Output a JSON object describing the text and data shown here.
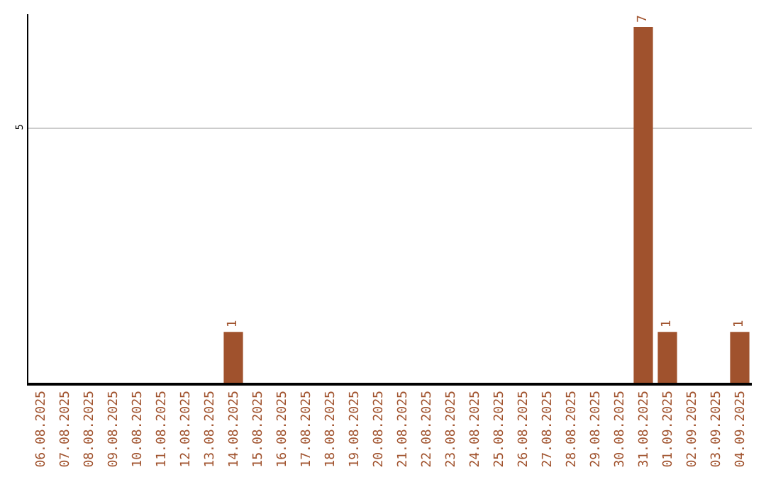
{
  "chart_data": {
    "type": "bar",
    "categories": [
      "06.08.2025",
      "07.08.2025",
      "08.08.2025",
      "09.08.2025",
      "10.08.2025",
      "11.08.2025",
      "12.08.2025",
      "13.08.2025",
      "14.08.2025",
      "15.08.2025",
      "16.08.2025",
      "17.08.2025",
      "18.08.2025",
      "19.08.2025",
      "20.08.2025",
      "21.08.2025",
      "22.08.2025",
      "23.08.2025",
      "24.08.2025",
      "25.08.2025",
      "26.08.2025",
      "27.08.2025",
      "28.08.2025",
      "29.08.2025",
      "30.08.2025",
      "31.08.2025",
      "01.09.2025",
      "02.09.2025",
      "03.09.2025",
      "04.09.2025"
    ],
    "values": [
      0,
      0,
      0,
      0,
      0,
      0,
      0,
      0,
      1,
      0,
      0,
      0,
      0,
      0,
      0,
      0,
      0,
      0,
      0,
      0,
      0,
      0,
      0,
      0,
      0,
      7,
      1,
      0,
      0,
      1
    ],
    "value_labels": [
      null,
      null,
      null,
      null,
      null,
      null,
      null,
      null,
      "1",
      null,
      null,
      null,
      null,
      null,
      null,
      null,
      null,
      null,
      null,
      null,
      null,
      null,
      null,
      null,
      null,
      "7",
      "1",
      null,
      null,
      "1"
    ],
    "color": "#a0522d",
    "ylim": [
      0,
      7.25
    ],
    "yticks": [
      5
    ],
    "grid": "y",
    "legend": false
  }
}
